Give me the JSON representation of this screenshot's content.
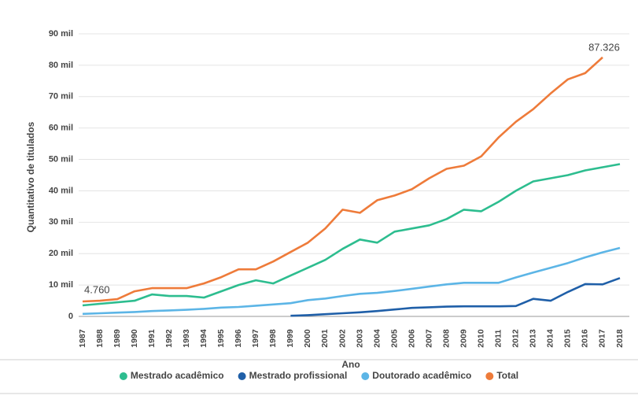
{
  "chart_data": {
    "type": "line",
    "y_label": "Quantitativo de titulados",
    "x_label": "Ano",
    "categories": [
      "1987",
      "1988",
      "1989",
      "1990",
      "1991",
      "1992",
      "1993",
      "1994",
      "1995",
      "1996",
      "1997",
      "1998",
      "1999",
      "2000",
      "2001",
      "2002",
      "2003",
      "2004",
      "2005",
      "2006",
      "2007",
      "2008",
      "2009",
      "2010",
      "2011",
      "2012",
      "2013",
      "2014",
      "2015",
      "2016",
      "2017",
      "2018"
    ],
    "series": [
      {
        "name": "Mestrado acadêmico",
        "color": "#2dbd8f",
        "values": [
          3500,
          4000,
          4500,
          5000,
          7000,
          6500,
          6500,
          6000,
          8000,
          10000,
          11500,
          10500,
          13000,
          15500,
          18000,
          21500,
          24500,
          23500,
          27000,
          28000,
          29000,
          31000,
          34000,
          33500,
          36500,
          40000,
          43000,
          44000,
          45000,
          46500,
          47500,
          48500
        ]
      },
      {
        "name": "Mestrado profissional",
        "color": "#1f5fa8",
        "values": [
          null,
          null,
          null,
          null,
          null,
          null,
          null,
          null,
          null,
          null,
          null,
          null,
          200,
          400,
          700,
          1000,
          1300,
          1700,
          2200,
          2700,
          2900,
          3100,
          3200,
          3200,
          3200,
          3300,
          5600,
          5000,
          7800,
          10300,
          10200,
          12200
        ]
      },
      {
        "name": "Doutorado acadêmico",
        "color": "#5cb5e6",
        "values": [
          800,
          1000,
          1200,
          1400,
          1700,
          1900,
          2100,
          2400,
          2800,
          3000,
          3400,
          3800,
          4200,
          5200,
          5700,
          6500,
          7200,
          7500,
          8100,
          8800,
          9500,
          10200,
          10700,
          10700,
          10700,
          12400,
          14000,
          15500,
          17000,
          18800,
          20400,
          21800
        ]
      },
      {
        "name": "Total",
        "color": "#ee7b3a",
        "values": [
          4760,
          5000,
          5500,
          8000,
          9000,
          9000,
          9000,
          10500,
          12500,
          15000,
          15000,
          17500,
          20500,
          23500,
          28000,
          34000,
          33000,
          37000,
          38500,
          40500,
          44000,
          47000,
          48000,
          51000,
          57000,
          62000,
          66000,
          71000,
          75500,
          77500,
          82500,
          null
        ]
      }
    ],
    "annotations": [
      "4.760",
      "87.326"
    ],
    "ylim": [
      0,
      90000
    ],
    "yticks": [
      0,
      {
        "value": 10000,
        "label": "10 mil"
      },
      {
        "value": 20000,
        "label": "20 mil"
      },
      {
        "value": 30000,
        "label": "30 mil"
      },
      {
        "value": 40000,
        "label": "40 mil"
      },
      {
        "value": 50000,
        "label": "50 mil"
      },
      {
        "value": 60000,
        "label": "60 mil"
      },
      {
        "value": 70000,
        "label": "70 mil"
      },
      {
        "value": 80000,
        "label": "80 mil"
      },
      {
        "value": 90000,
        "label": "90 mil"
      }
    ],
    "grid": true,
    "legend": "bottom"
  }
}
